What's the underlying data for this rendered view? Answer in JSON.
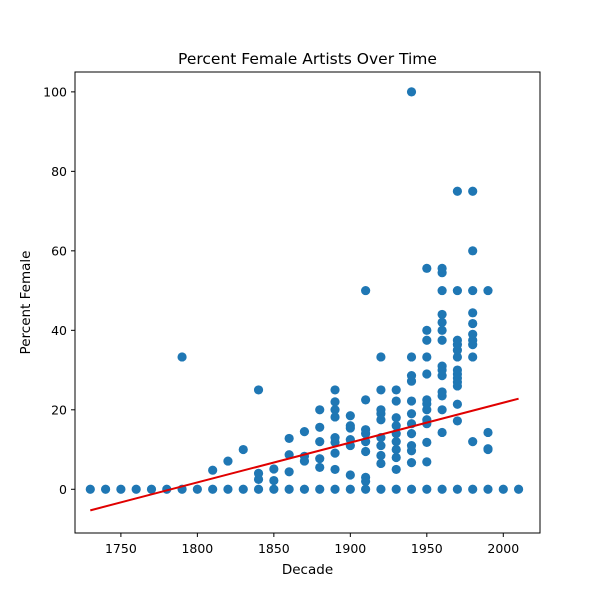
{
  "chart_data": {
    "type": "scatter",
    "title": "Percent Female Artists Over Time",
    "xlabel": "Decade",
    "ylabel": "Percent Female",
    "xlim": [
      1720,
      2024
    ],
    "ylim": [
      -11,
      105
    ],
    "xticks": [
      1750,
      1800,
      1850,
      1900,
      1950,
      2000
    ],
    "yticks": [
      0,
      20,
      40,
      60,
      80,
      100
    ],
    "grid": false,
    "colors": {
      "points": "#1f77b4",
      "trend": "#e00000",
      "axes": "#000000"
    },
    "points": [
      [
        1730,
        0
      ],
      [
        1740,
        0
      ],
      [
        1750,
        0
      ],
      [
        1760,
        0
      ],
      [
        1770,
        0
      ],
      [
        1780,
        0
      ],
      [
        1790,
        0
      ],
      [
        1790,
        33.3
      ],
      [
        1800,
        0
      ],
      [
        1810,
        0
      ],
      [
        1810,
        4.8
      ],
      [
        1820,
        0
      ],
      [
        1820,
        7.1
      ],
      [
        1830,
        0
      ],
      [
        1830,
        10
      ],
      [
        1840,
        0
      ],
      [
        1840,
        2.5
      ],
      [
        1840,
        4
      ],
      [
        1840,
        25
      ],
      [
        1850,
        0
      ],
      [
        1850,
        2.2
      ],
      [
        1850,
        5.1
      ],
      [
        1860,
        0
      ],
      [
        1860,
        4.4
      ],
      [
        1860,
        8.7
      ],
      [
        1860,
        12.8
      ],
      [
        1870,
        0
      ],
      [
        1870,
        7.1
      ],
      [
        1870,
        8.3
      ],
      [
        1870,
        14.5
      ],
      [
        1880,
        0
      ],
      [
        1880,
        5.5
      ],
      [
        1880,
        7.7
      ],
      [
        1880,
        12
      ],
      [
        1880,
        15.6
      ],
      [
        1880,
        20
      ],
      [
        1890,
        0
      ],
      [
        1890,
        5
      ],
      [
        1890,
        9.1
      ],
      [
        1890,
        11.8
      ],
      [
        1890,
        13
      ],
      [
        1890,
        18.2
      ],
      [
        1890,
        20
      ],
      [
        1890,
        22
      ],
      [
        1890,
        25
      ],
      [
        1900,
        0
      ],
      [
        1900,
        3.6
      ],
      [
        1900,
        11
      ],
      [
        1900,
        12.5
      ],
      [
        1900,
        15.4
      ],
      [
        1900,
        16
      ],
      [
        1900,
        18.5
      ],
      [
        1910,
        0
      ],
      [
        1910,
        2
      ],
      [
        1910,
        3
      ],
      [
        1910,
        9.5
      ],
      [
        1910,
        12
      ],
      [
        1910,
        14
      ],
      [
        1910,
        15
      ],
      [
        1910,
        22.5
      ],
      [
        1910,
        50
      ],
      [
        1920,
        0
      ],
      [
        1920,
        6.5
      ],
      [
        1920,
        8.5
      ],
      [
        1920,
        11
      ],
      [
        1920,
        13
      ],
      [
        1920,
        17.5
      ],
      [
        1920,
        19
      ],
      [
        1920,
        20
      ],
      [
        1920,
        25
      ],
      [
        1920,
        33.3
      ],
      [
        1930,
        0
      ],
      [
        1930,
        5
      ],
      [
        1930,
        8
      ],
      [
        1930,
        10
      ],
      [
        1930,
        12
      ],
      [
        1930,
        14
      ],
      [
        1930,
        16
      ],
      [
        1930,
        18
      ],
      [
        1930,
        22.2
      ],
      [
        1930,
        25
      ],
      [
        1940,
        0
      ],
      [
        1940,
        6.7
      ],
      [
        1940,
        9.7
      ],
      [
        1940,
        11
      ],
      [
        1940,
        14
      ],
      [
        1940,
        16.5
      ],
      [
        1940,
        19
      ],
      [
        1940,
        22.2
      ],
      [
        1940,
        27.2
      ],
      [
        1940,
        28.6
      ],
      [
        1940,
        33.3
      ],
      [
        1940,
        100
      ],
      [
        1950,
        0
      ],
      [
        1950,
        6.9
      ],
      [
        1950,
        11.8
      ],
      [
        1950,
        16.5
      ],
      [
        1950,
        17.5
      ],
      [
        1950,
        20
      ],
      [
        1950,
        21.5
      ],
      [
        1950,
        22.5
      ],
      [
        1950,
        29
      ],
      [
        1950,
        33.3
      ],
      [
        1950,
        37.5
      ],
      [
        1950,
        40
      ],
      [
        1950,
        55.6
      ],
      [
        1960,
        0
      ],
      [
        1960,
        14.3
      ],
      [
        1960,
        20
      ],
      [
        1960,
        23.5
      ],
      [
        1960,
        24.5
      ],
      [
        1960,
        28.6
      ],
      [
        1960,
        30
      ],
      [
        1960,
        31
      ],
      [
        1960,
        37.5
      ],
      [
        1960,
        40
      ],
      [
        1960,
        42
      ],
      [
        1960,
        44
      ],
      [
        1960,
        50
      ],
      [
        1960,
        54.5
      ],
      [
        1960,
        55.6
      ],
      [
        1970,
        0
      ],
      [
        1970,
        17.2
      ],
      [
        1970,
        21.4
      ],
      [
        1970,
        26
      ],
      [
        1970,
        27
      ],
      [
        1970,
        28
      ],
      [
        1970,
        29
      ],
      [
        1970,
        30
      ],
      [
        1970,
        33.3
      ],
      [
        1970,
        35
      ],
      [
        1970,
        36.4
      ],
      [
        1970,
        37.5
      ],
      [
        1970,
        50
      ],
      [
        1970,
        75
      ],
      [
        1980,
        0
      ],
      [
        1980,
        12
      ],
      [
        1980,
        33.3
      ],
      [
        1980,
        36.4
      ],
      [
        1980,
        37.5
      ],
      [
        1980,
        39
      ],
      [
        1980,
        41.7
      ],
      [
        1980,
        44.4
      ],
      [
        1980,
        50
      ],
      [
        1980,
        60
      ],
      [
        1980,
        75
      ],
      [
        1990,
        0
      ],
      [
        1990,
        10
      ],
      [
        1990,
        10.2
      ],
      [
        1990,
        14.3
      ],
      [
        1990,
        50
      ],
      [
        2000,
        0
      ],
      [
        2010,
        0
      ]
    ],
    "trend_line": {
      "x": [
        1730,
        2010
      ],
      "y": [
        -5.3,
        22.8
      ]
    }
  }
}
